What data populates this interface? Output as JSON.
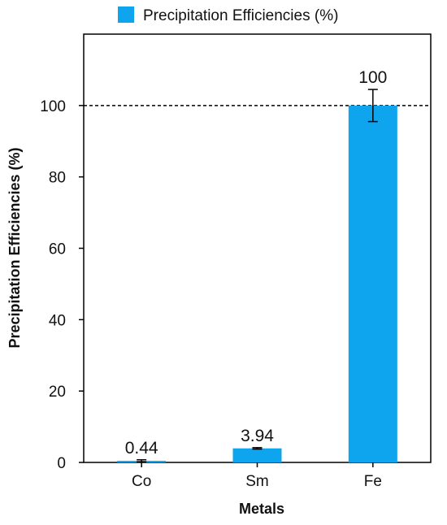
{
  "chart_data": {
    "type": "bar",
    "categories": [
      "Co",
      "Sm",
      "Fe"
    ],
    "series": [
      {
        "name": "Precipitation Efficiencies (%)",
        "values": [
          0.44,
          3.94,
          100
        ],
        "error": [
          0.3,
          0.2,
          4.5
        ],
        "data_labels": [
          "0.44",
          "3.94",
          "100"
        ],
        "color": "#0ea5ee"
      }
    ],
    "xlabel": "Metals",
    "ylabel": "Precipitation Efficiencies (%)",
    "ylim": [
      0,
      120
    ],
    "yticks": [
      0,
      20,
      40,
      60,
      80,
      100
    ],
    "ytick_labels": [
      "0",
      "20",
      "40",
      "60",
      "80",
      "100"
    ],
    "reference_line": {
      "y": 100,
      "style": "dashed"
    },
    "legend": {
      "position": "top-center"
    },
    "grid": false
  }
}
